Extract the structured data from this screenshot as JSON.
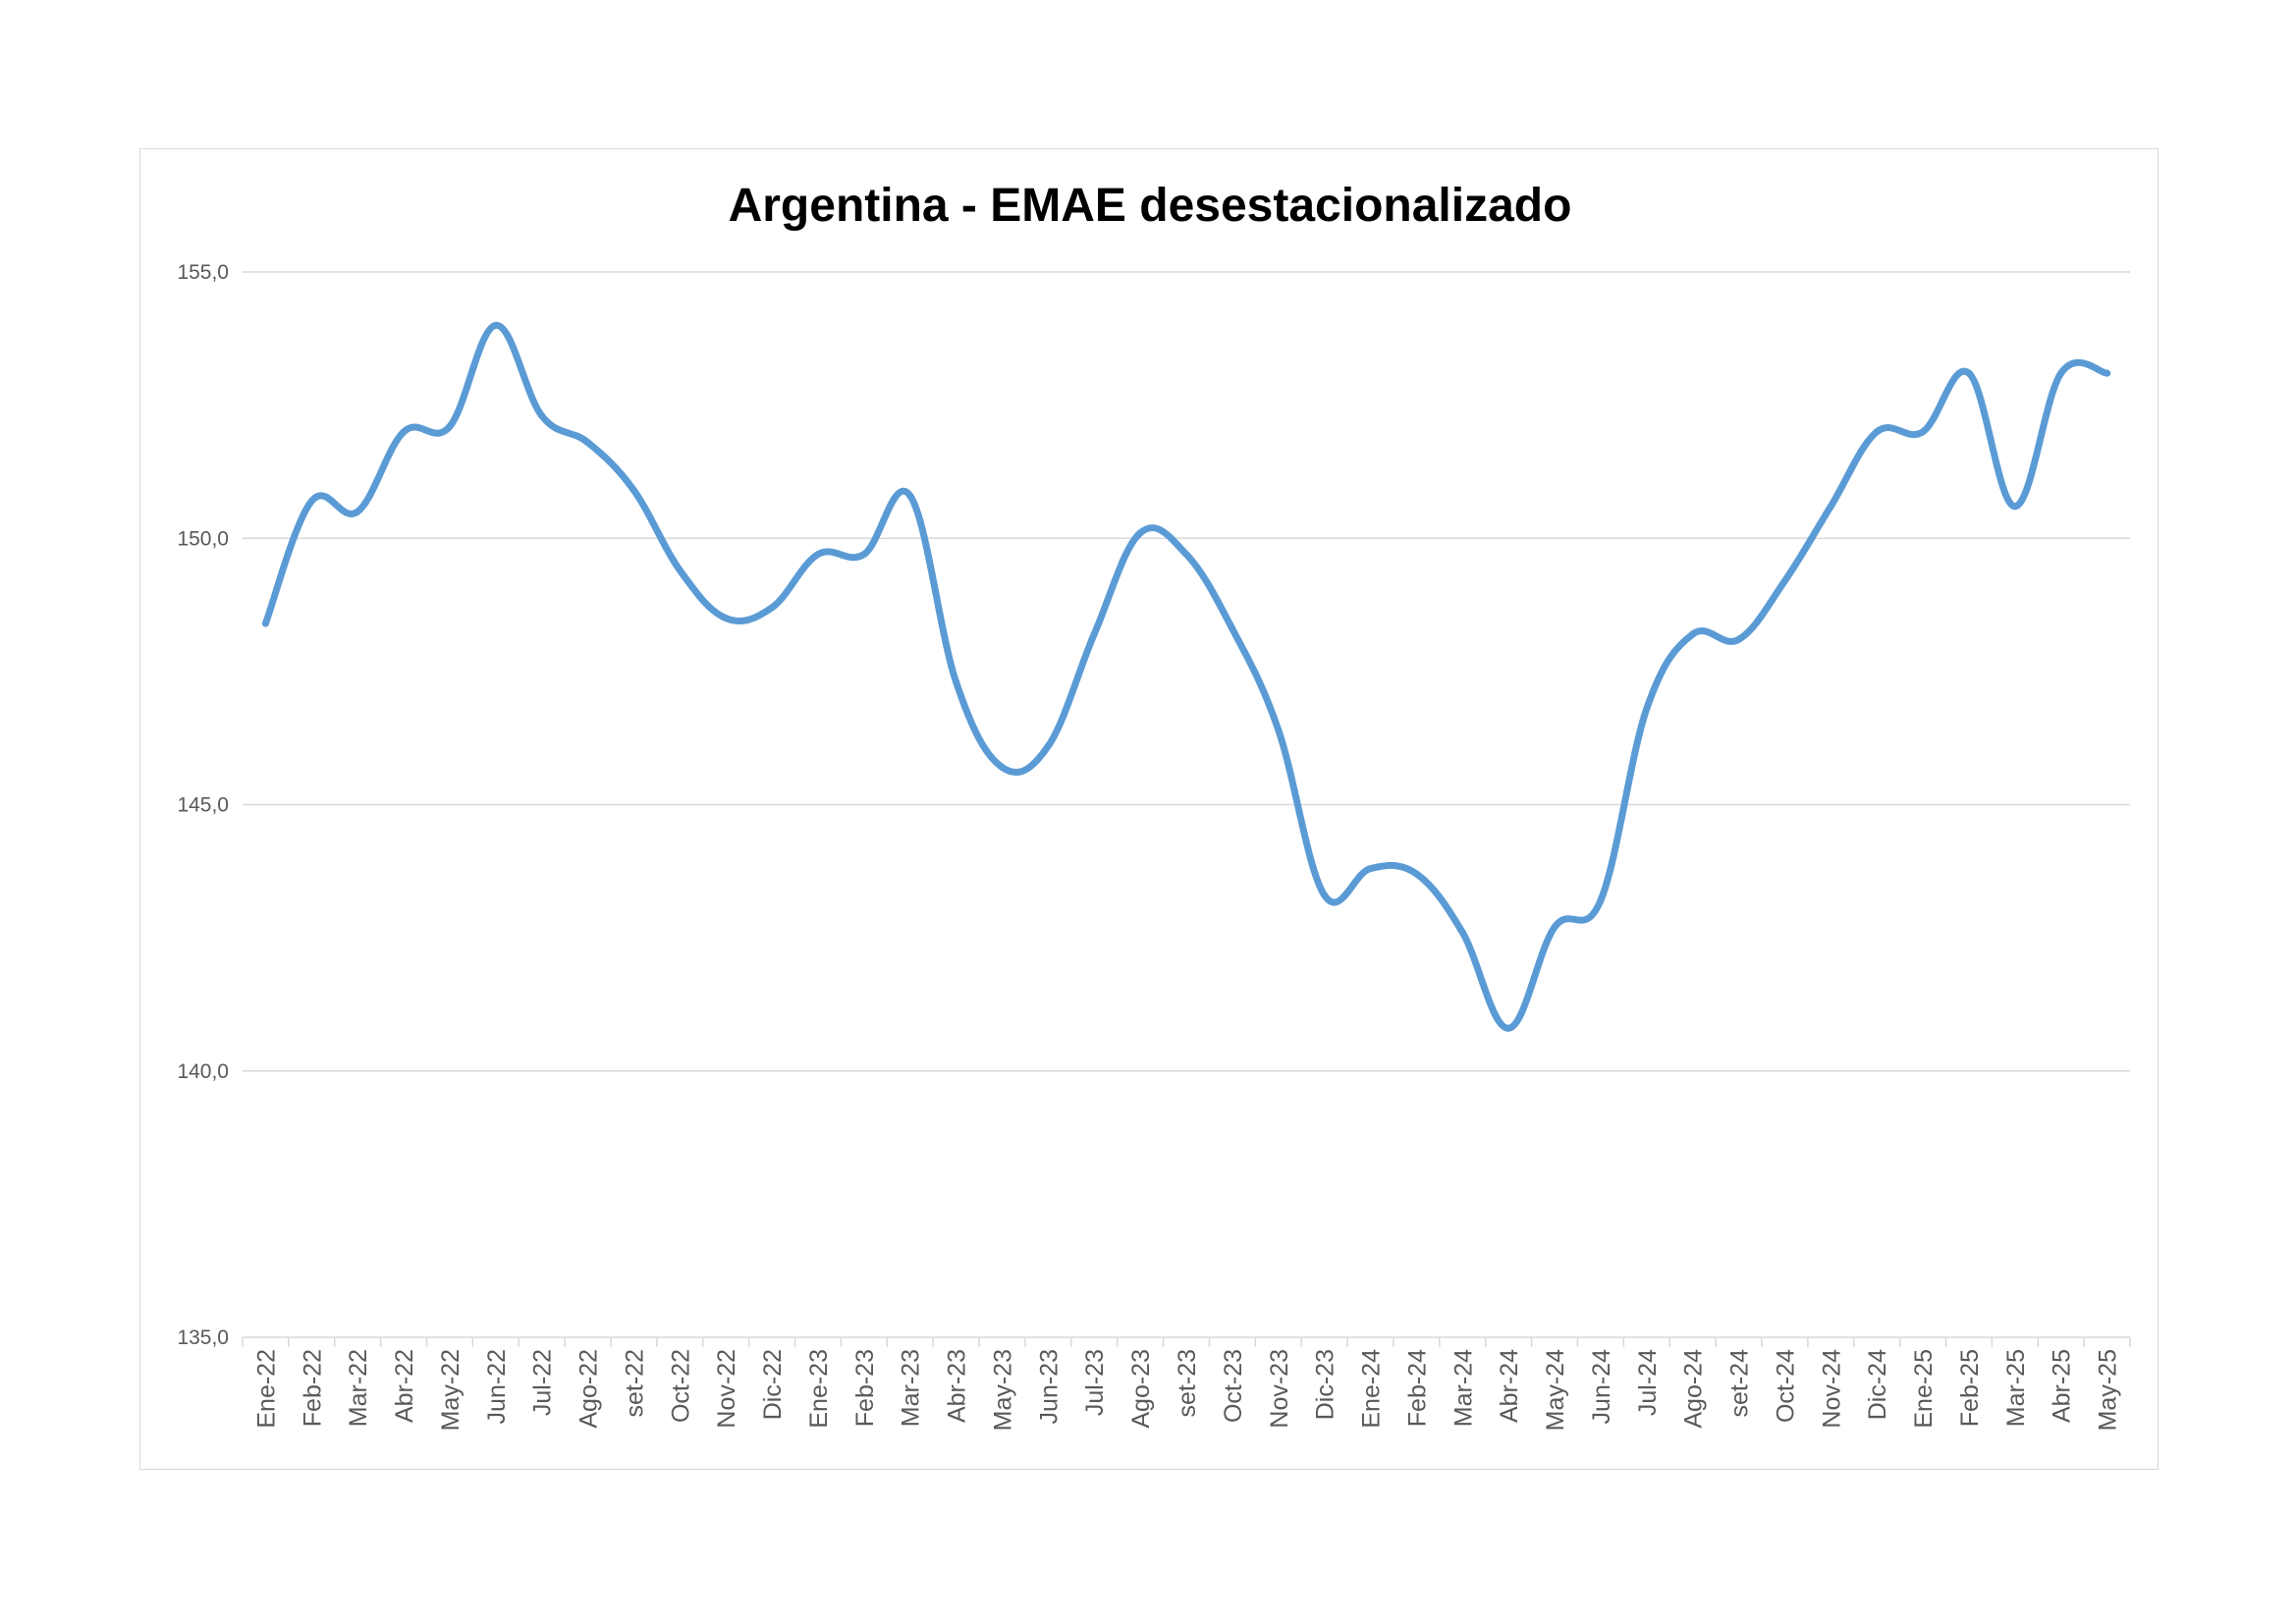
{
  "chart_data": {
    "type": "line",
    "title": "Argentina - EMAE desestacionalizado",
    "xlabel": "",
    "ylabel": "",
    "ylim": [
      135,
      155
    ],
    "yticks": [
      "135,0",
      "140,0",
      "145,0",
      "150,0",
      "155,0"
    ],
    "ytick_values": [
      135,
      140,
      145,
      150,
      155
    ],
    "grid": true,
    "legend": "none",
    "line_color": "#5B9BD5",
    "categories": [
      "Ene-22",
      "Feb-22",
      "Mar-22",
      "Abr-22",
      "May-22",
      "Jun-22",
      "Jul-22",
      "Ago-22",
      "set-22",
      "Oct-22",
      "Nov-22",
      "Dic-22",
      "Ene-23",
      "Feb-23",
      "Mar-23",
      "Abr-23",
      "May-23",
      "Jun-23",
      "Jul-23",
      "Ago-23",
      "set-23",
      "Oct-23",
      "Nov-23",
      "Dic-23",
      "Ene-24",
      "Feb-24",
      "Mar-24",
      "Abr-24",
      "May-24",
      "Jun-24",
      "Jul-24",
      "Ago-24",
      "set-24",
      "Oct-24",
      "Nov-24",
      "Dic-24",
      "Ene-25",
      "Feb-25",
      "Mar-25",
      "Abr-25",
      "May-25"
    ],
    "series": [
      {
        "values": [
          148.4,
          150.7,
          150.5,
          152.0,
          152.1,
          154.0,
          152.3,
          151.8,
          150.9,
          149.4,
          148.5,
          148.7,
          149.7,
          149.7,
          150.8,
          147.3,
          145.7,
          146.1,
          148.2,
          150.1,
          149.7,
          148.3,
          146.4,
          143.3,
          143.8,
          143.7,
          142.6,
          140.8,
          142.7,
          143.2,
          146.8,
          148.2,
          148.1,
          149.2,
          150.6,
          152.0,
          152.0,
          153.1,
          150.6,
          153.1,
          153.1
        ]
      }
    ]
  }
}
